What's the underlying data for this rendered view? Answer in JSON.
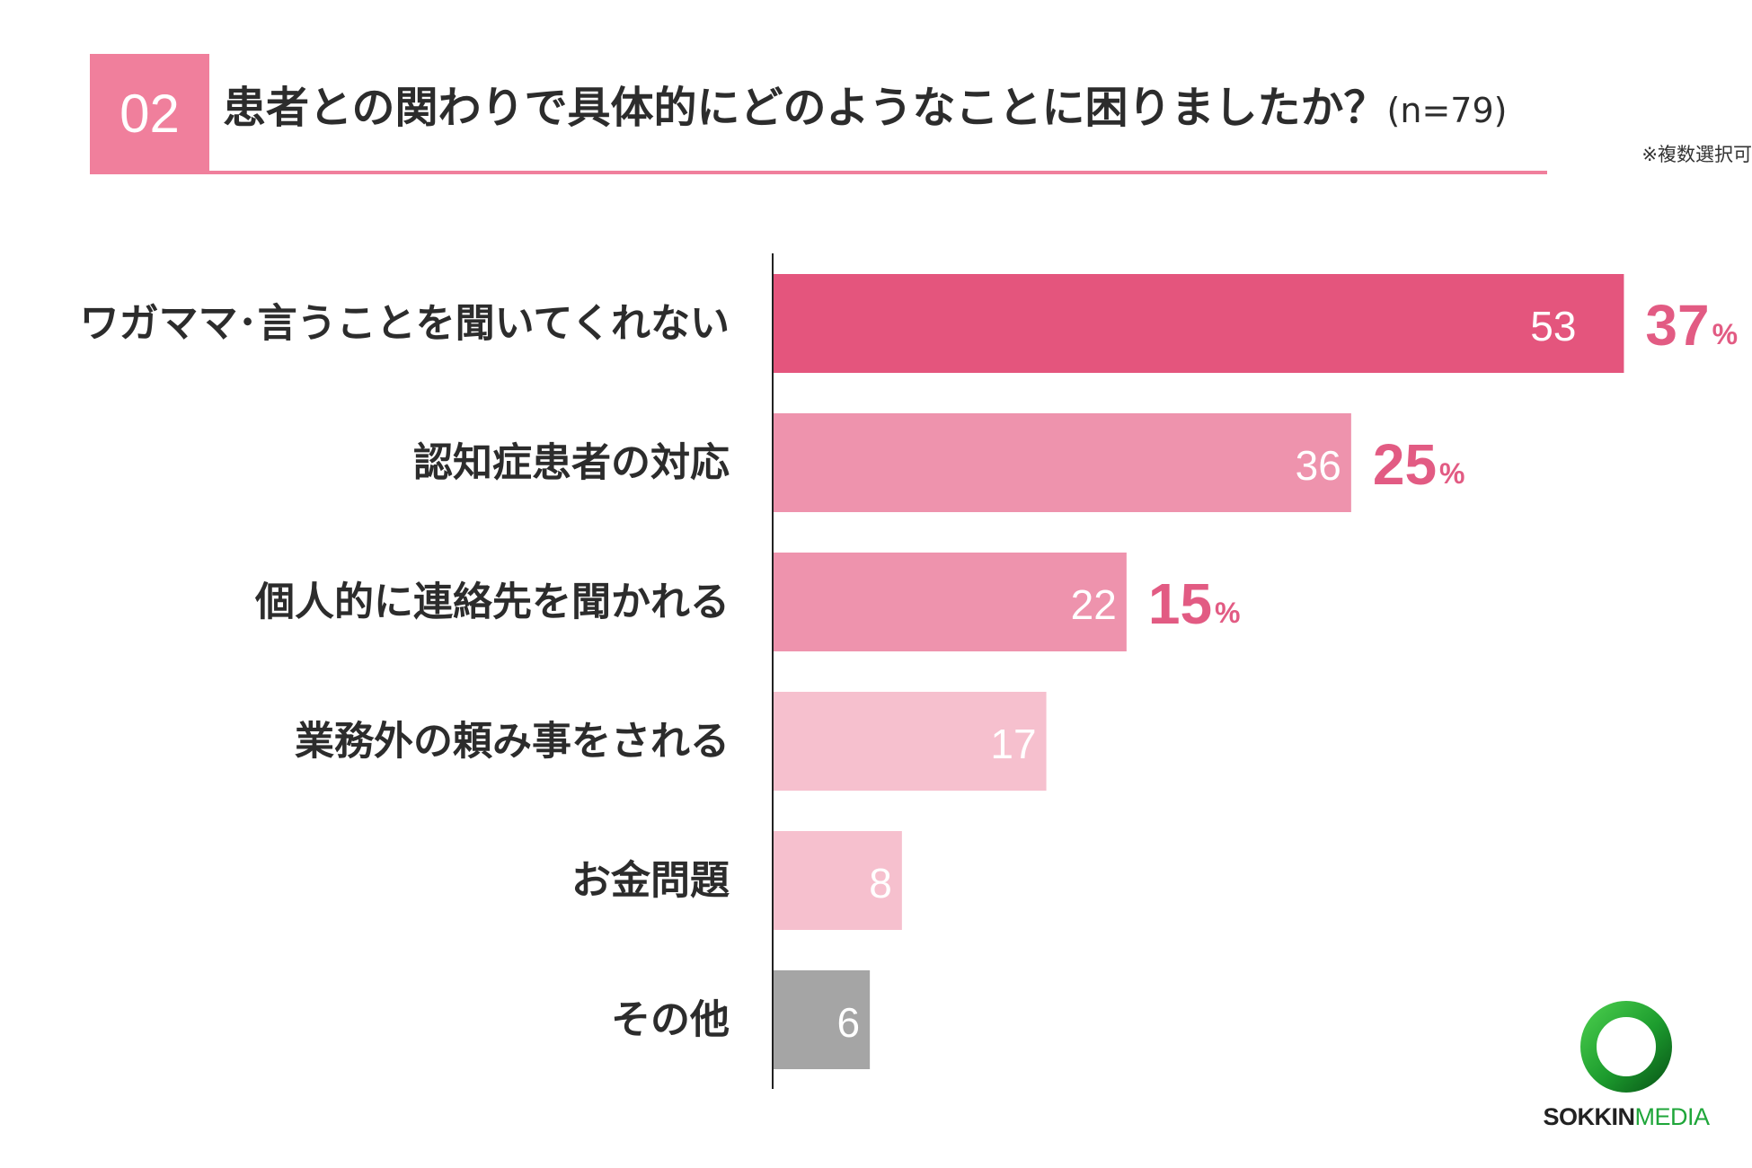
{
  "header": {
    "number": "02",
    "title": "患者との関わりで具体的にどのようなことに困りましたか？",
    "sample": "(n=79)",
    "note": "※複数選択可"
  },
  "colors": {
    "accent": "#f07f9c",
    "top": "#e4557d",
    "mid": "#ee93ad",
    "light": "#f6c0ce",
    "other": "#a5a5a5",
    "pct": "#e25b83"
  },
  "chart_data": {
    "type": "bar",
    "orientation": "horizontal",
    "categories": [
      "ワガママ･言うことを聞いてくれない",
      "認知症患者の対応",
      "個人的に連絡先を聞かれる",
      "業務外の頼み事をされる",
      "お金問題",
      "その他"
    ],
    "values": [
      53,
      36,
      22,
      17,
      8,
      6
    ],
    "percent_labels": [
      "37",
      "25",
      "15",
      "",
      "",
      ""
    ],
    "percent_sign": "%",
    "bar_colors": [
      "#e4557d",
      "#ee93ad",
      "#ee93ad",
      "#f6c0ce",
      "#f6c0ce",
      "#a5a5a5"
    ],
    "xlim": [
      0,
      56
    ],
    "grid": false,
    "legend": "none"
  },
  "logo": {
    "word_a": "SOKKIN",
    "word_b": "MEDIA"
  }
}
